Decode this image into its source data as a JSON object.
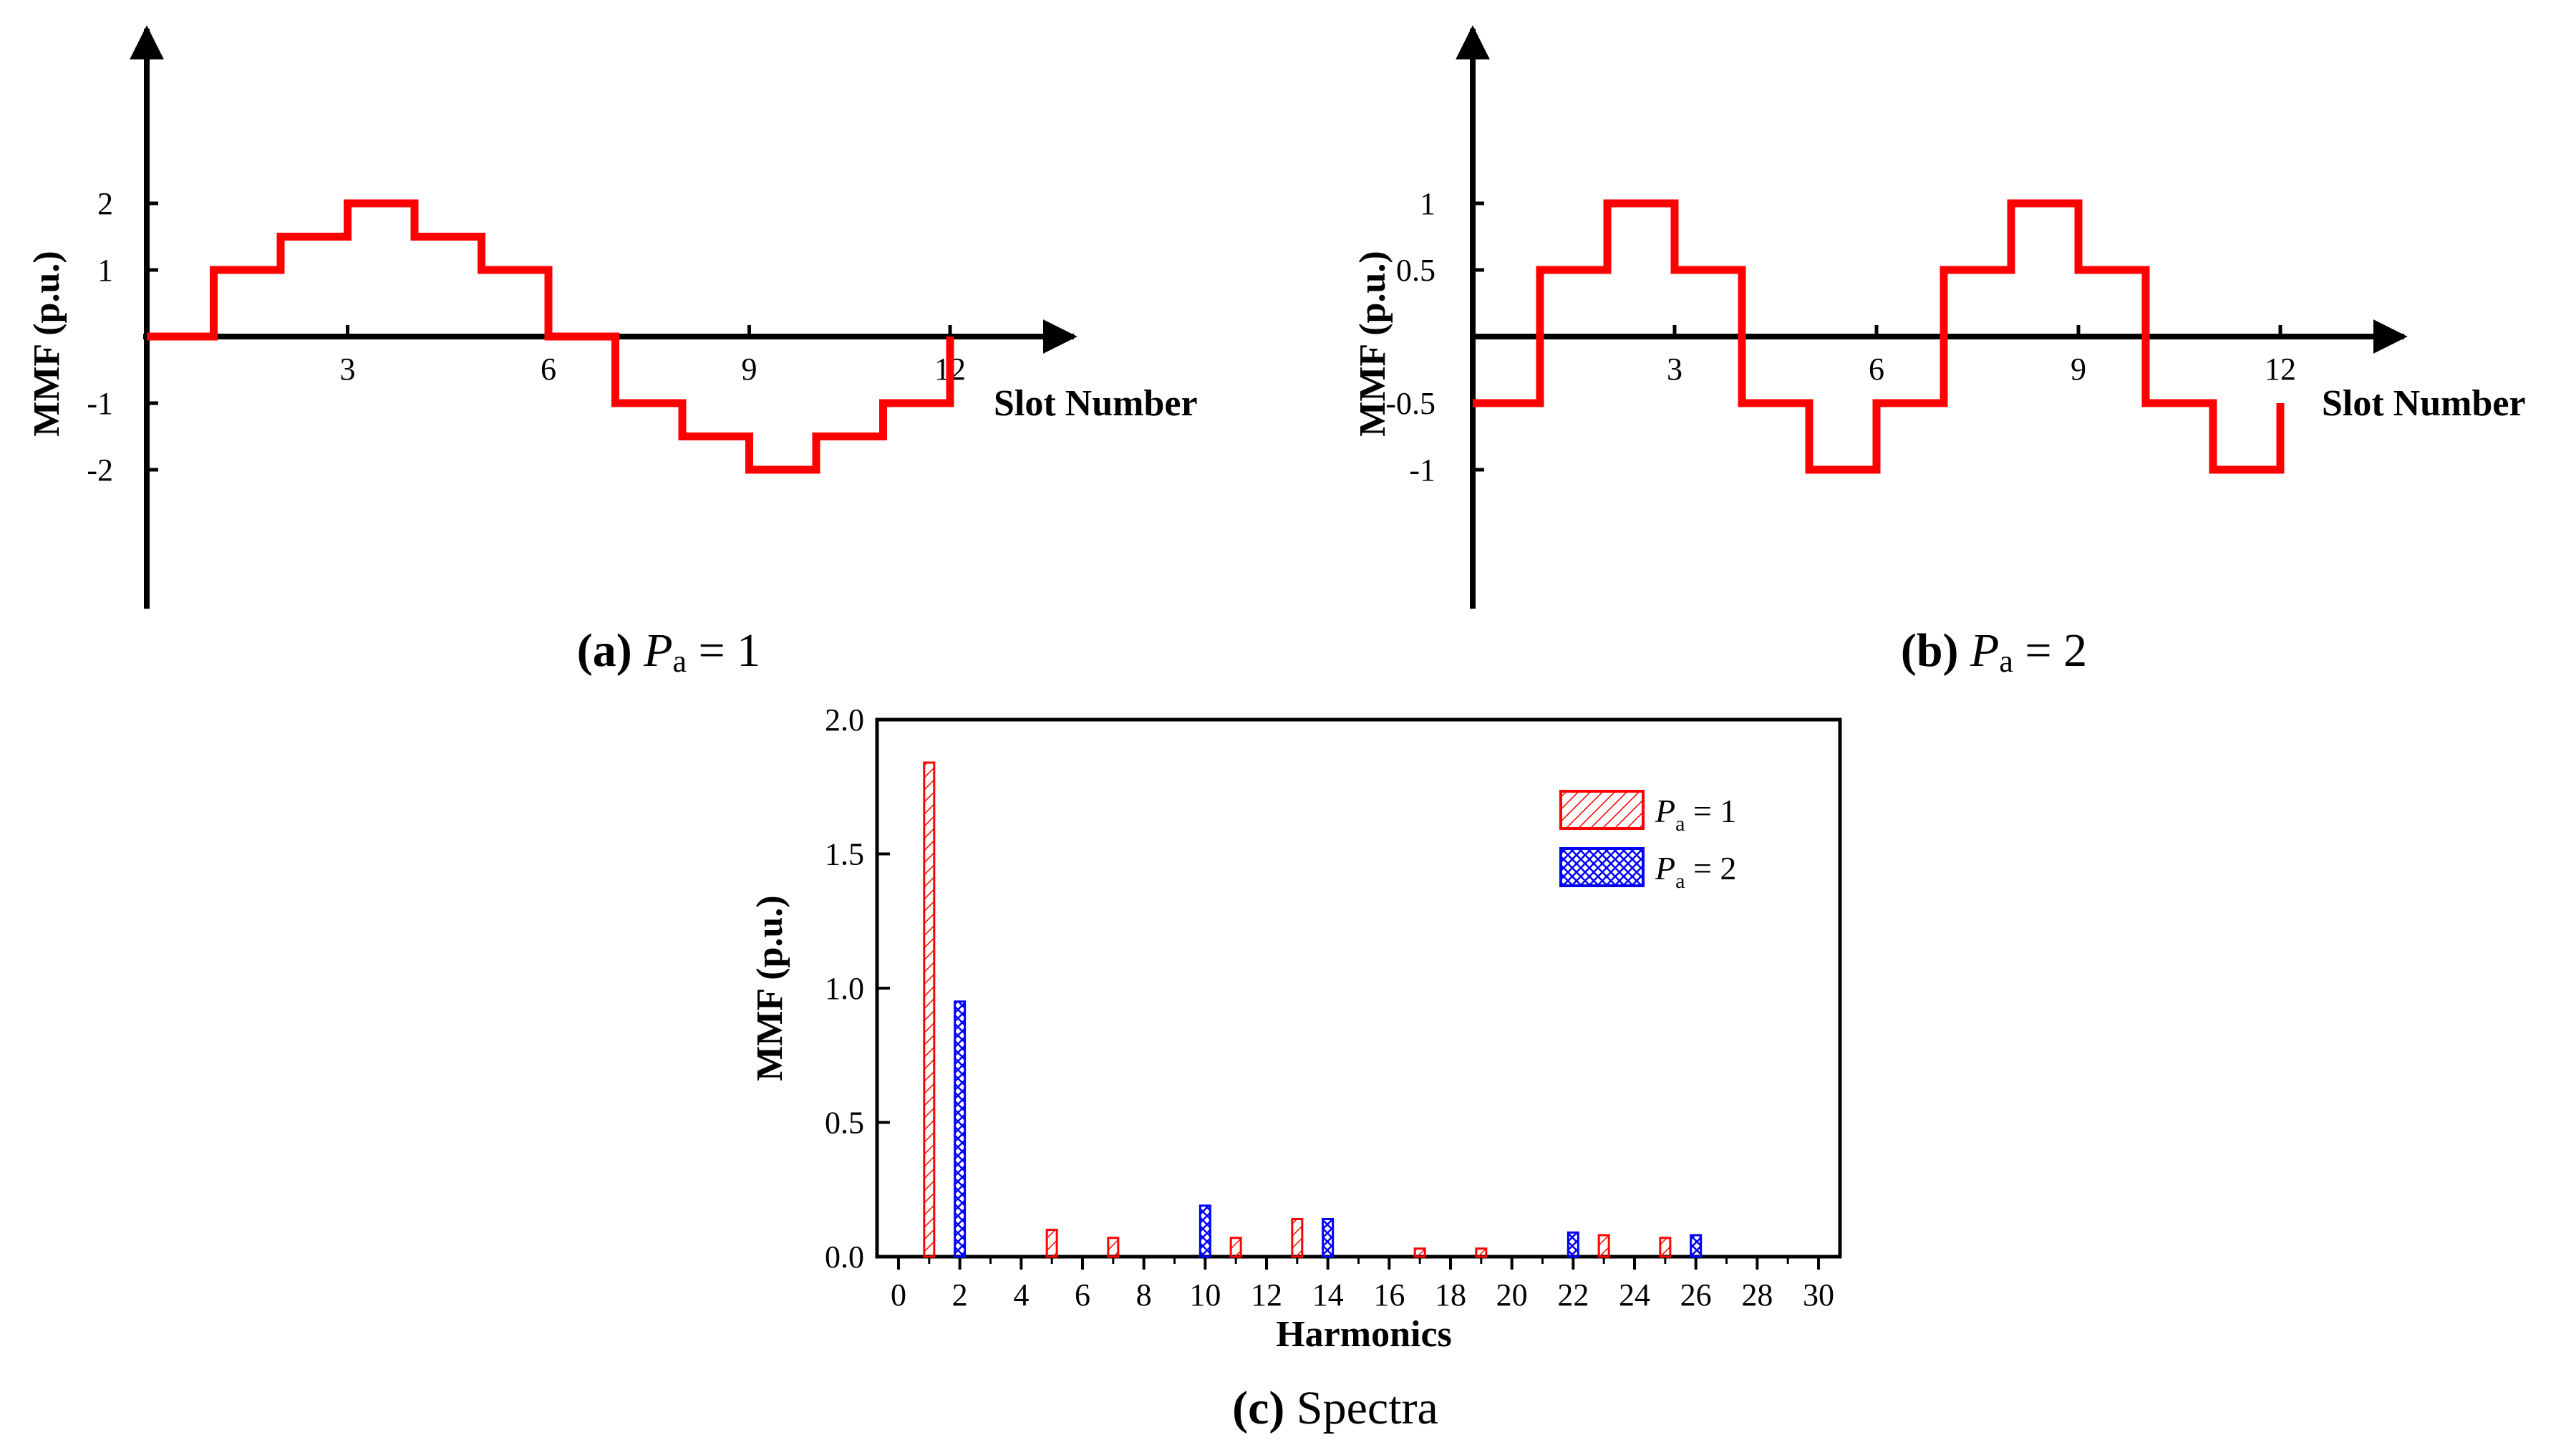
{
  "colors": {
    "red": "#ff0000",
    "blue": "#0000ff",
    "axis": "#000000"
  },
  "chart_data": [
    {
      "id": "a",
      "type": "line",
      "step": true,
      "caption_label": "(a)",
      "caption_var": "P",
      "caption_sub": "a",
      "caption_rest": " = 1",
      "xlabel": "Slot Number",
      "ylabel": "MMF (p.u.)",
      "xticks": [
        "3",
        "6",
        "9",
        "12"
      ],
      "xtick_values": [
        3,
        6,
        9,
        12
      ],
      "yticks": [
        "2",
        "1",
        "-1",
        "-2"
      ],
      "ytick_values": [
        2,
        1,
        -1,
        -2
      ],
      "xlim": [
        0,
        13.5
      ],
      "ylim": [
        -4,
        4
      ],
      "series": [
        {
          "name": "MMF",
          "color": "#ff0000",
          "x": [
            0,
            1,
            2,
            3,
            4,
            5,
            6,
            7,
            8,
            9,
            10,
            11,
            12
          ],
          "values": [
            0,
            1,
            1.5,
            2,
            1.5,
            1,
            0,
            -1,
            -1.5,
            -2,
            -1.5,
            -1,
            0
          ]
        }
      ]
    },
    {
      "id": "b",
      "type": "line",
      "step": true,
      "caption_label": "(b)",
      "caption_var": "P",
      "caption_sub": "a",
      "caption_rest": " = 2",
      "xlabel": "Slot Number",
      "ylabel": "MMF (p.u.)",
      "xticks": [
        "3",
        "6",
        "9",
        "12"
      ],
      "xtick_values": [
        3,
        6,
        9,
        12
      ],
      "yticks": [
        "1",
        "0.5",
        "-0.5",
        "-1"
      ],
      "ytick_values": [
        1,
        0.5,
        -0.5,
        -1
      ],
      "xlim": [
        0,
        13.5
      ],
      "ylim": [
        -2,
        2
      ],
      "series": [
        {
          "name": "MMF",
          "color": "#ff0000",
          "x": [
            0,
            1,
            2,
            3,
            4,
            5,
            6,
            7,
            8,
            9,
            10,
            11,
            12
          ],
          "values": [
            -0.5,
            0.5,
            1,
            0.5,
            -0.5,
            -1,
            -0.5,
            0.5,
            1,
            0.5,
            -0.5,
            -1,
            -0.5
          ]
        }
      ]
    },
    {
      "id": "c",
      "type": "bar",
      "caption_label": "(c)",
      "caption_rest": " Spectra",
      "xlabel": "Harmonics",
      "ylabel": "MMF (p.u.)",
      "xticks": [
        "0",
        "2",
        "4",
        "6",
        "8",
        "10",
        "12",
        "14",
        "16",
        "18",
        "20",
        "22",
        "24",
        "26",
        "28",
        "30"
      ],
      "xtick_values": [
        0,
        2,
        4,
        6,
        8,
        10,
        12,
        14,
        16,
        18,
        20,
        22,
        24,
        26,
        28,
        30
      ],
      "yticks": [
        "0.0",
        "0.5",
        "1.0",
        "1.5",
        "2.0"
      ],
      "ytick_values": [
        0,
        0.5,
        1.0,
        1.5,
        2.0
      ],
      "xlim": [
        -0.7,
        30.7
      ],
      "ylim": [
        0,
        2.0
      ],
      "legend_position": "top-right",
      "series": [
        {
          "name_var": "P",
          "name_sub": "a",
          "name_rest": " = 1",
          "color": "#ff0000",
          "hatch": "diagonal",
          "x": [
            1,
            5,
            7,
            11,
            13,
            17,
            19,
            23,
            25
          ],
          "values": [
            1.84,
            0.1,
            0.07,
            0.07,
            0.14,
            0.03,
            0.03,
            0.08,
            0.07
          ]
        },
        {
          "name_var": "P",
          "name_sub": "a",
          "name_rest": " = 2",
          "color": "#0000ff",
          "hatch": "cross",
          "x": [
            2,
            10,
            14,
            22,
            26
          ],
          "values": [
            0.95,
            0.19,
            0.14,
            0.09,
            0.08
          ]
        }
      ]
    }
  ]
}
